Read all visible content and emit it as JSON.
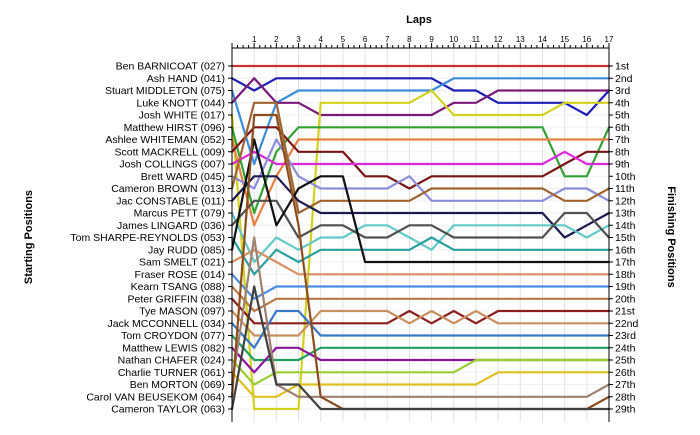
{
  "chart_data": {
    "type": "line",
    "title": "Laps",
    "ylabel_left": "Starting Positions",
    "ylabel_right": "Finishing Positions",
    "x": [
      0,
      1,
      2,
      3,
      4,
      5,
      6,
      7,
      8,
      9,
      10,
      11,
      12,
      13,
      14,
      15,
      16,
      17
    ],
    "x_tick_labels": [
      "1",
      "2",
      "3",
      "4",
      "5",
      "6",
      "7",
      "8",
      "9",
      "10",
      "11",
      "12",
      "13",
      "14",
      "15",
      "16",
      "17"
    ],
    "finishing_labels": [
      "1st",
      "2nd",
      "3rd",
      "4th",
      "5th",
      "6th",
      "7th",
      "8th",
      "9th",
      "10th",
      "11th",
      "12th",
      "13th",
      "14th",
      "15th",
      "16th",
      "17th",
      "18th",
      "19th",
      "20th",
      "21st",
      "22nd",
      "23rd",
      "24th",
      "25th",
      "26th",
      "27th",
      "28th",
      "29th"
    ],
    "drivers": [
      "Ben BARNICOAT (027)",
      "Ash HAND (041)",
      "Stuart MIDDLETON (075)",
      "Luke KNOTT (044)",
      "Josh WHITE (017)",
      "Matthew HIRST (096)",
      "Ashlee WHITEMAN (052)",
      "Scott MACKRELL (009)",
      "Josh COLLINGS (007)",
      "Brett WARD (045)",
      "Cameron BROWN (013)",
      "Jac CONSTABLE (011)",
      "Marcus PETT (079)",
      "James LINGARD (036)",
      "Tom SHARPE-REYNOLDS (053)",
      "Jay RUDD (085)",
      "Sam SMELT (021)",
      "Fraser ROSE (014)",
      "Kearn TSANG (088)",
      "Peter GRIFFIN (038)",
      "Tye MASON (097)",
      "Jack MCCONNELL (034)",
      "Tom CROYDON (077)",
      "Matthew LEWIS (082)",
      "Nathan CHAFER (024)",
      "Charlie TURNER (061)",
      "Ben MORTON (069)",
      "Carol VAN BEUSEKOM (064)",
      "Cameron TAYLOR (063)"
    ],
    "series": [
      {
        "color": "#c83232",
        "values": [
          1,
          1,
          1,
          1,
          1,
          1,
          1,
          1,
          1,
          1,
          1,
          1,
          1,
          1,
          1,
          1,
          1,
          1
        ]
      },
      {
        "color": "#1e1eb4",
        "values": [
          2,
          3,
          2,
          2,
          2,
          2,
          2,
          2,
          2,
          2,
          3,
          3,
          4,
          4,
          4,
          4,
          5,
          3
        ]
      },
      {
        "color": "#3c8cdc",
        "values": [
          3,
          9,
          4,
          3,
          3,
          3,
          3,
          3,
          3,
          3,
          2,
          2,
          2,
          2,
          2,
          2,
          2,
          2
        ]
      },
      {
        "color": "#7a1a7a",
        "values": [
          4,
          2,
          4,
          4,
          5,
          5,
          5,
          5,
          5,
          5,
          4,
          4,
          3,
          3,
          3,
          3,
          3,
          3
        ]
      },
      {
        "color": "#d2d21e",
        "values": [
          5,
          29,
          29,
          29,
          4,
          4,
          4,
          4,
          4,
          3,
          5,
          5,
          5,
          5,
          5,
          4,
          4,
          4
        ]
      },
      {
        "color": "#32a032",
        "values": [
          6,
          13,
          8,
          6,
          6,
          6,
          6,
          6,
          6,
          6,
          6,
          6,
          6,
          6,
          6,
          10,
          10,
          6
        ]
      },
      {
        "color": "#e88040",
        "values": [
          7,
          14,
          10,
          7,
          7,
          7,
          7,
          7,
          7,
          7,
          7,
          7,
          7,
          7,
          7,
          7,
          7,
          7
        ]
      },
      {
        "color": "#7a1414",
        "values": [
          8,
          6,
          6,
          8,
          8,
          8,
          10,
          10,
          11,
          10,
          10,
          10,
          10,
          10,
          10,
          9,
          8,
          8
        ]
      },
      {
        "color": "#dc28dc",
        "values": [
          9,
          8,
          9,
          9,
          9,
          9,
          9,
          9,
          9,
          9,
          9,
          9,
          9,
          9,
          9,
          8,
          9,
          9
        ]
      },
      {
        "color": "#8c8cdc",
        "values": [
          10,
          11,
          7,
          10,
          11,
          11,
          11,
          11,
          10,
          12,
          12,
          12,
          12,
          12,
          12,
          11,
          11,
          12
        ]
      },
      {
        "color": "#a06432",
        "values": [
          11,
          4,
          4,
          13,
          12,
          12,
          12,
          12,
          12,
          11,
          11,
          11,
          11,
          11,
          11,
          12,
          12,
          11
        ]
      },
      {
        "color": "#1a1a50",
        "values": [
          12,
          10,
          10,
          12,
          13,
          13,
          13,
          13,
          13,
          13,
          13,
          13,
          13,
          13,
          13,
          15,
          14,
          13
        ]
      },
      {
        "color": "#64c8c8",
        "values": [
          13,
          17,
          15,
          16,
          15,
          15,
          14,
          14,
          15,
          16,
          14,
          14,
          14,
          14,
          14,
          14,
          15,
          14
        ]
      },
      {
        "color": "#505050",
        "values": [
          14,
          12,
          12,
          15,
          14,
          14,
          15,
          15,
          14,
          14,
          15,
          15,
          15,
          15,
          15,
          13,
          13,
          15
        ]
      },
      {
        "color": "#28a0a0",
        "values": [
          15,
          18,
          16,
          17,
          16,
          16,
          16,
          16,
          16,
          15,
          16,
          16,
          16,
          16,
          16,
          16,
          16,
          16
        ]
      },
      {
        "color": "#101010",
        "values": [
          16,
          7,
          14,
          11,
          10,
          10,
          17,
          17,
          17,
          17,
          17,
          17,
          17,
          17,
          17,
          17,
          17,
          17
        ]
      },
      {
        "color": "#d89060",
        "values": [
          17,
          16,
          17,
          18,
          18,
          18,
          18,
          18,
          18,
          18,
          18,
          18,
          18,
          18,
          18,
          18,
          18,
          18
        ]
      },
      {
        "color": "#4a8ce0",
        "values": [
          18,
          20,
          19,
          19,
          19,
          19,
          19,
          19,
          19,
          19,
          19,
          19,
          19,
          19,
          19,
          19,
          19,
          19
        ]
      },
      {
        "color": "#b87848",
        "values": [
          19,
          21,
          20,
          20,
          20,
          20,
          20,
          20,
          20,
          20,
          20,
          20,
          20,
          20,
          20,
          20,
          20,
          20
        ]
      },
      {
        "color": "#8c1e1e",
        "values": [
          20,
          22,
          22,
          22,
          22,
          22,
          22,
          22,
          21,
          22,
          21,
          22,
          21,
          21,
          21,
          21,
          21,
          21
        ]
      },
      {
        "color": "#c89060",
        "values": [
          21,
          23,
          23,
          23,
          21,
          21,
          21,
          21,
          22,
          21,
          22,
          21,
          22,
          22,
          22,
          22,
          22,
          22
        ]
      },
      {
        "color": "#3c78c8",
        "values": [
          22,
          24,
          21,
          21,
          23,
          23,
          23,
          23,
          23,
          23,
          23,
          23,
          23,
          23,
          23,
          23,
          23,
          23
        ]
      },
      {
        "color": "#20a060",
        "values": [
          23,
          25,
          25,
          25,
          24,
          24,
          24,
          24,
          24,
          24,
          24,
          24,
          24,
          24,
          24,
          24,
          24,
          24
        ]
      },
      {
        "color": "#8c14a0",
        "values": [
          24,
          26,
          24,
          24,
          25,
          25,
          25,
          25,
          25,
          25,
          25,
          25,
          25,
          25,
          25,
          25,
          25,
          25
        ]
      },
      {
        "color": "#9acd32",
        "values": [
          25,
          27,
          26,
          26,
          26,
          26,
          26,
          26,
          26,
          26,
          26,
          25,
          25,
          25,
          25,
          25,
          25,
          25
        ]
      },
      {
        "color": "#e0c020",
        "values": [
          26,
          28,
          28,
          27,
          27,
          27,
          27,
          27,
          27,
          27,
          27,
          27,
          26,
          26,
          26,
          26,
          26,
          26
        ]
      },
      {
        "color": "#a08070",
        "values": [
          27,
          15,
          27,
          28,
          28,
          28,
          28,
          28,
          28,
          28,
          28,
          28,
          28,
          28,
          28,
          28,
          28,
          27
        ]
      },
      {
        "color": "#8c4c1e",
        "values": [
          28,
          5,
          5,
          14,
          28,
          29,
          29,
          29,
          29,
          29,
          29,
          29,
          29,
          29,
          29,
          29,
          29,
          28
        ]
      },
      {
        "color": "#404040",
        "values": [
          29,
          19,
          27,
          27,
          29,
          29,
          29,
          29,
          29,
          29,
          29,
          29,
          29,
          29,
          29,
          29,
          29,
          29
        ]
      }
    ],
    "xlim": [
      0,
      17
    ],
    "ylim": [
      1,
      29
    ],
    "grid": true,
    "legend": "none"
  }
}
